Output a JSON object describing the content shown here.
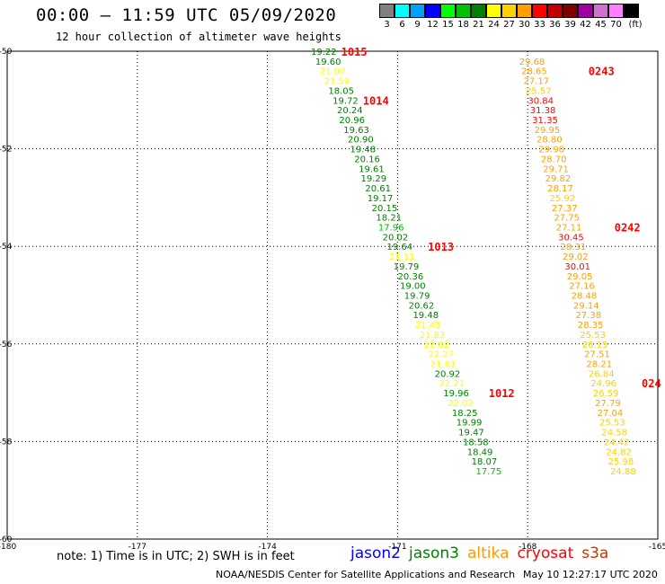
{
  "header": {
    "title": "00:00 – 11:59 UTC 05/09/2020",
    "subtitle": "12 hour collection of altimeter wave heights"
  },
  "color_scale": {
    "unit": "(ft)",
    "bins": [
      {
        "label": "3",
        "color": "#808080"
      },
      {
        "label": "6",
        "color": "#00ffff"
      },
      {
        "label": "9",
        "color": "#00a0ff"
      },
      {
        "label": "12",
        "color": "#0000ff"
      },
      {
        "label": "15",
        "color": "#00ff00"
      },
      {
        "label": "18",
        "color": "#00c000"
      },
      {
        "label": "21",
        "color": "#008000"
      },
      {
        "label": "24",
        "color": "#ffff00"
      },
      {
        "label": "27",
        "color": "#ffd000"
      },
      {
        "label": "30",
        "color": "#ffa000"
      },
      {
        "label": "33",
        "color": "#ff0000"
      },
      {
        "label": "36",
        "color": "#c00000"
      },
      {
        "label": "39",
        "color": "#800000"
      },
      {
        "label": "42",
        "color": "#a000a0"
      },
      {
        "label": "45",
        "color": "#d070d0"
      },
      {
        "label": "70",
        "color": "#ff80ff"
      },
      {
        "label": "",
        "color": "#000000"
      }
    ]
  },
  "map": {
    "lon_range": [
      -180,
      -165
    ],
    "lat_range": [
      -60,
      -50
    ],
    "lon_ticks": [
      "-180",
      "-177",
      "-174",
      "-171",
      "-168",
      "-165"
    ],
    "lat_ticks": [
      "-50",
      "-52",
      "-54",
      "-56",
      "-58",
      "-60"
    ]
  },
  "tracks": [
    {
      "satellite": "jason3",
      "points": [
        {
          "lat": -50.0,
          "lon": -172.7,
          "v": "19.22"
        },
        {
          "lat": -50.2,
          "lon": -172.6,
          "v": "19.60"
        },
        {
          "lat": -50.4,
          "lon": -172.5,
          "v": "21.00"
        },
        {
          "lat": -50.6,
          "lon": -172.4,
          "v": "21.59"
        },
        {
          "lat": -50.8,
          "lon": -172.3,
          "v": "18.05"
        },
        {
          "lat": -51.0,
          "lon": -172.2,
          "v": "19.72"
        },
        {
          "lat": -51.2,
          "lon": -172.1,
          "v": "20.24"
        },
        {
          "lat": -51.4,
          "lon": -172.05,
          "v": "20.96"
        },
        {
          "lat": -51.6,
          "lon": -171.95,
          "v": "19.63"
        },
        {
          "lat": -51.8,
          "lon": -171.85,
          "v": "20.90"
        },
        {
          "lat": -52.0,
          "lon": -171.8,
          "v": "19.48"
        },
        {
          "lat": -52.2,
          "lon": -171.7,
          "v": "20.16"
        },
        {
          "lat": -52.4,
          "lon": -171.6,
          "v": "19.61"
        },
        {
          "lat": -52.6,
          "lon": -171.55,
          "v": "19.29"
        },
        {
          "lat": -52.8,
          "lon": -171.45,
          "v": "20.61"
        },
        {
          "lat": -53.0,
          "lon": -171.4,
          "v": "19.17"
        },
        {
          "lat": -53.2,
          "lon": -171.3,
          "v": "20.15"
        },
        {
          "lat": -53.4,
          "lon": -171.2,
          "v": "18.21"
        },
        {
          "lat": -53.6,
          "lon": -171.15,
          "v": "17.96"
        },
        {
          "lat": -53.8,
          "lon": -171.05,
          "v": "20.02"
        },
        {
          "lat": -54.0,
          "lon": -170.95,
          "v": "19.64"
        },
        {
          "lat": -54.2,
          "lon": -170.9,
          "v": "21.11"
        },
        {
          "lat": -54.4,
          "lon": -170.8,
          "v": "19.79"
        },
        {
          "lat": -54.6,
          "lon": -170.7,
          "v": "20.36"
        },
        {
          "lat": -54.8,
          "lon": -170.65,
          "v": "19.00"
        },
        {
          "lat": -55.0,
          "lon": -170.55,
          "v": "19.79"
        },
        {
          "lat": -55.2,
          "lon": -170.45,
          "v": "20.62"
        },
        {
          "lat": -55.4,
          "lon": -170.35,
          "v": "19.48"
        },
        {
          "lat": -55.6,
          "lon": -170.3,
          "v": "21.45"
        },
        {
          "lat": -55.8,
          "lon": -170.2,
          "v": "21.83"
        },
        {
          "lat": -56.0,
          "lon": -170.1,
          "v": "22.82"
        },
        {
          "lat": -56.2,
          "lon": -170.0,
          "v": "22.27"
        },
        {
          "lat": -56.4,
          "lon": -169.95,
          "v": "21.61"
        },
        {
          "lat": -56.6,
          "lon": -169.85,
          "v": "20.92"
        },
        {
          "lat": -56.8,
          "lon": -169.75,
          "v": "22.21"
        },
        {
          "lat": -57.0,
          "lon": -169.65,
          "v": "19.96"
        },
        {
          "lat": -57.2,
          "lon": -169.55,
          "v": "22.02"
        },
        {
          "lat": -57.4,
          "lon": -169.45,
          "v": "18.25"
        },
        {
          "lat": -57.6,
          "lon": -169.35,
          "v": "19.99"
        },
        {
          "lat": -57.8,
          "lon": -169.3,
          "v": "19.47"
        },
        {
          "lat": -58.0,
          "lon": -169.2,
          "v": "18.58"
        },
        {
          "lat": -58.2,
          "lon": -169.1,
          "v": "18.49"
        },
        {
          "lat": -58.4,
          "lon": -169.0,
          "v": "18.07"
        },
        {
          "lat": -58.6,
          "lon": -168.9,
          "v": "17.75"
        }
      ],
      "times": [
        {
          "lat": -50.0,
          "lon": -172.3,
          "t": "1015"
        },
        {
          "lat": -51.0,
          "lon": -171.8,
          "t": "1014"
        },
        {
          "lat": -54.0,
          "lon": -170.3,
          "t": "1013"
        },
        {
          "lat": -57.0,
          "lon": -168.9,
          "t": "1012"
        }
      ]
    },
    {
      "satellite": "cryosat",
      "points": [
        {
          "lat": -50.2,
          "lon": -167.9,
          "v": "29.68"
        },
        {
          "lat": -50.4,
          "lon": -167.85,
          "v": "28.65"
        },
        {
          "lat": -50.6,
          "lon": -167.8,
          "v": "27.17"
        },
        {
          "lat": -50.8,
          "lon": -167.75,
          "v": "25.57"
        },
        {
          "lat": -51.0,
          "lon": -167.7,
          "v": "30.84"
        },
        {
          "lat": -51.2,
          "lon": -167.65,
          "v": "31.38"
        },
        {
          "lat": -51.4,
          "lon": -167.6,
          "v": "31.35"
        },
        {
          "lat": -51.6,
          "lon": -167.55,
          "v": "29.95"
        },
        {
          "lat": -51.8,
          "lon": -167.5,
          "v": "28.80"
        },
        {
          "lat": -52.0,
          "lon": -167.45,
          "v": "29.90"
        },
        {
          "lat": -52.2,
          "lon": -167.4,
          "v": "28.70"
        },
        {
          "lat": -52.4,
          "lon": -167.35,
          "v": "29.71"
        },
        {
          "lat": -52.6,
          "lon": -167.3,
          "v": "29.82"
        },
        {
          "lat": -52.8,
          "lon": -167.25,
          "v": "28.17"
        },
        {
          "lat": -53.0,
          "lon": -167.2,
          "v": "25.92"
        },
        {
          "lat": -53.2,
          "lon": -167.15,
          "v": "27.37"
        },
        {
          "lat": -53.4,
          "lon": -167.1,
          "v": "27.75"
        },
        {
          "lat": -53.6,
          "lon": -167.05,
          "v": "27.11"
        },
        {
          "lat": -53.8,
          "lon": -167.0,
          "v": "30.45"
        },
        {
          "lat": -54.0,
          "lon": -166.95,
          "v": "28.31"
        },
        {
          "lat": -54.2,
          "lon": -166.9,
          "v": "29.02"
        },
        {
          "lat": -54.4,
          "lon": -166.85,
          "v": "30.01"
        },
        {
          "lat": -54.6,
          "lon": -166.8,
          "v": "29.05"
        },
        {
          "lat": -54.8,
          "lon": -166.75,
          "v": "27.16"
        },
        {
          "lat": -55.0,
          "lon": -166.7,
          "v": "28.48"
        },
        {
          "lat": -55.2,
          "lon": -166.65,
          "v": "29.14"
        },
        {
          "lat": -55.4,
          "lon": -166.6,
          "v": "27.38"
        },
        {
          "lat": -55.6,
          "lon": -166.55,
          "v": "28.35"
        },
        {
          "lat": -55.8,
          "lon": -166.5,
          "v": "25.53"
        },
        {
          "lat": -56.0,
          "lon": -166.45,
          "v": "26.15"
        },
        {
          "lat": -56.2,
          "lon": -166.4,
          "v": "27.51"
        },
        {
          "lat": -56.4,
          "lon": -166.35,
          "v": "28.21"
        },
        {
          "lat": -56.6,
          "lon": -166.3,
          "v": "26.84"
        },
        {
          "lat": -56.8,
          "lon": -166.25,
          "v": "24.96"
        },
        {
          "lat": -57.0,
          "lon": -166.2,
          "v": "26.59"
        },
        {
          "lat": -57.2,
          "lon": -166.15,
          "v": "27.79"
        },
        {
          "lat": -57.4,
          "lon": -166.1,
          "v": "27.04"
        },
        {
          "lat": -57.6,
          "lon": -166.05,
          "v": "25.53"
        },
        {
          "lat": -57.8,
          "lon": -166.0,
          "v": "24.58"
        },
        {
          "lat": -58.0,
          "lon": -165.95,
          "v": "24.42"
        },
        {
          "lat": -58.2,
          "lon": -165.9,
          "v": "24.82"
        },
        {
          "lat": -58.4,
          "lon": -165.85,
          "v": "25.98"
        },
        {
          "lat": -58.6,
          "lon": -165.8,
          "v": "24.88"
        }
      ],
      "times": [
        {
          "lat": -50.4,
          "lon": -166.6,
          "t": "0243"
        },
        {
          "lat": -53.6,
          "lon": -166.0,
          "t": "0242"
        },
        {
          "lat": -56.8,
          "lon": -165.2,
          "t": "024"
        }
      ]
    }
  ],
  "note": "note: 1) Time is in UTC; 2) SWH is in feet",
  "legend": [
    {
      "name": "jason2",
      "color": "#0000ff"
    },
    {
      "name": "jason3",
      "color": "#008000"
    },
    {
      "name": "altika",
      "color": "#ff9900"
    },
    {
      "name": "cryosat",
      "color": "#ff0000"
    },
    {
      "name": "s3a",
      "color": "#cc3300"
    }
  ],
  "footer": {
    "left": "NOAA/NESDIS Center for Satellite Applications and Research",
    "right": "May 10 12:27:17 UTC 2020"
  }
}
